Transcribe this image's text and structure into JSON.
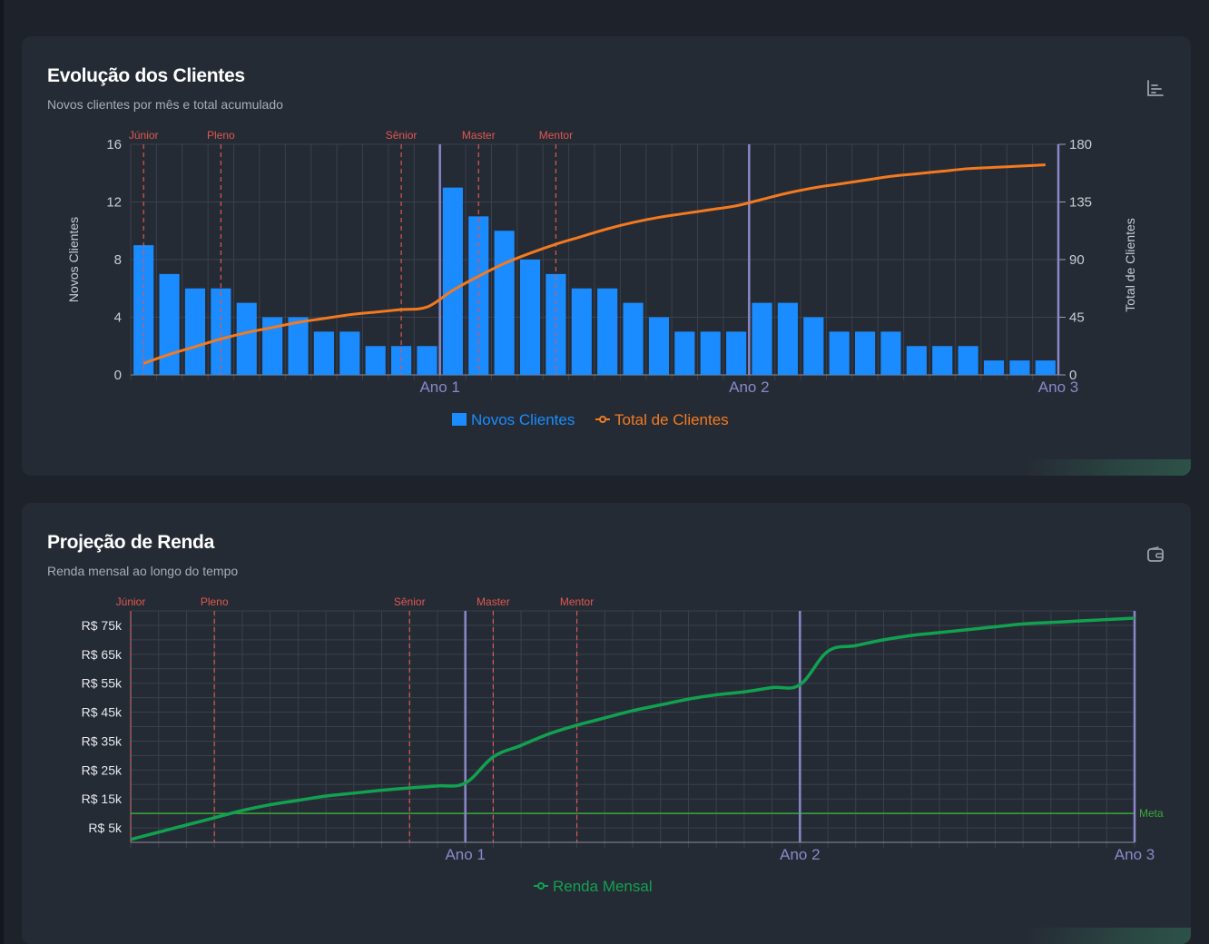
{
  "cards": {
    "clients": {
      "title": "Evolução dos Clientes",
      "subtitle": "Novos clientes por mês e total acumulado",
      "icon": "bar-chart-icon"
    },
    "income": {
      "title": "Projeção de Renda",
      "subtitle": "Renda mensal ao longo do tempo",
      "icon": "wallet-icon"
    }
  },
  "colors": {
    "bar": "#1a8cff",
    "total_line": "#f47a20",
    "income_line": "#12a150",
    "meta_line": "#3aa83a",
    "milestone": "#e0574f",
    "year_line": "#8a88c8",
    "grid": "#3b414c"
  },
  "chart_data": [
    {
      "type": "bar",
      "title": "Evolução dos Clientes",
      "x": [
        1,
        2,
        3,
        4,
        5,
        6,
        7,
        8,
        9,
        10,
        11,
        12,
        13,
        14,
        15,
        16,
        17,
        18,
        19,
        20,
        21,
        22,
        23,
        24,
        25,
        26,
        27,
        28,
        29,
        30,
        31,
        32,
        33,
        34,
        35,
        36
      ],
      "x_tick_labels": [
        {
          "month": 12,
          "label": "Ano 1"
        },
        {
          "month": 24,
          "label": "Ano 2"
        },
        {
          "month": 36,
          "label": "Ano 3"
        }
      ],
      "series": [
        {
          "name": "Novos Clientes",
          "kind": "bar",
          "axis": "left",
          "values": [
            9,
            7,
            6,
            6,
            5,
            4,
            4,
            3,
            3,
            2,
            2,
            2,
            13,
            11,
            10,
            8,
            7,
            6,
            6,
            5,
            4,
            3,
            3,
            3,
            5,
            5,
            4,
            3,
            3,
            3,
            2,
            2,
            2,
            1,
            1,
            1
          ]
        },
        {
          "name": "Total de Clientes",
          "kind": "line",
          "axis": "right",
          "values": [
            9,
            16,
            22,
            28,
            33,
            37,
            41,
            44,
            47,
            49,
            51,
            53,
            66,
            77,
            87,
            95,
            102,
            108,
            114,
            119,
            123,
            126,
            129,
            132,
            137,
            142,
            146,
            149,
            152,
            155,
            157,
            159,
            161,
            162,
            163,
            164
          ]
        }
      ],
      "ylabel": "Novos Clientes",
      "ylim": [
        0,
        16
      ],
      "y_ticks": [
        0,
        4,
        8,
        12,
        16
      ],
      "y2label": "Total de Clientes",
      "y2lim": [
        0,
        180
      ],
      "y2_ticks": [
        0,
        45,
        90,
        135,
        180
      ],
      "milestones": [
        {
          "label": "Júnior",
          "month": 1
        },
        {
          "label": "Pleno",
          "month": 4
        },
        {
          "label": "Sênior",
          "month": 11
        },
        {
          "label": "Master",
          "month": 14
        },
        {
          "label": "Mentor",
          "month": 17
        }
      ],
      "legend": [
        "Novos Clientes",
        "Total de Clientes"
      ]
    },
    {
      "type": "line",
      "title": "Projeção de Renda",
      "x": [
        0,
        1,
        2,
        3,
        4,
        5,
        6,
        7,
        8,
        9,
        10,
        11,
        12,
        13,
        14,
        15,
        16,
        17,
        18,
        19,
        20,
        21,
        22,
        23,
        24,
        25,
        26,
        27,
        28,
        29,
        30,
        31,
        32,
        33,
        34,
        35,
        36
      ],
      "x_tick_labels": [
        {
          "month": 12,
          "label": "Ano 1"
        },
        {
          "month": 24,
          "label": "Ano 2"
        },
        {
          "month": 36,
          "label": "Ano 3"
        }
      ],
      "series": [
        {
          "name": "Renda Mensal",
          "values": [
            1000,
            3500,
            6000,
            8500,
            11000,
            13000,
            14500,
            16000,
            17000,
            18000,
            18800,
            19500,
            20500,
            29500,
            33500,
            37500,
            40500,
            43000,
            45500,
            47500,
            49500,
            51000,
            52000,
            53500,
            54500,
            66000,
            68000,
            70000,
            71500,
            72500,
            73500,
            74500,
            75500,
            76000,
            76500,
            77000,
            77500
          ]
        }
      ],
      "ylim": [
        0,
        80000
      ],
      "y_tick_labels": [
        "R$ 5k",
        "R$ 15k",
        "R$ 25k",
        "R$ 35k",
        "R$ 45k",
        "R$ 55k",
        "R$ 65k",
        "R$ 75k"
      ],
      "y_tick_values": [
        5000,
        15000,
        25000,
        35000,
        45000,
        55000,
        65000,
        75000
      ],
      "meta": {
        "label": "Meta",
        "value": 10000
      },
      "milestones": [
        {
          "label": "Júnior",
          "month": 0
        },
        {
          "label": "Pleno",
          "month": 3
        },
        {
          "label": "Sênior",
          "month": 10
        },
        {
          "label": "Master",
          "month": 13
        },
        {
          "label": "Mentor",
          "month": 16
        }
      ],
      "legend": [
        "Renda Mensal"
      ]
    }
  ]
}
